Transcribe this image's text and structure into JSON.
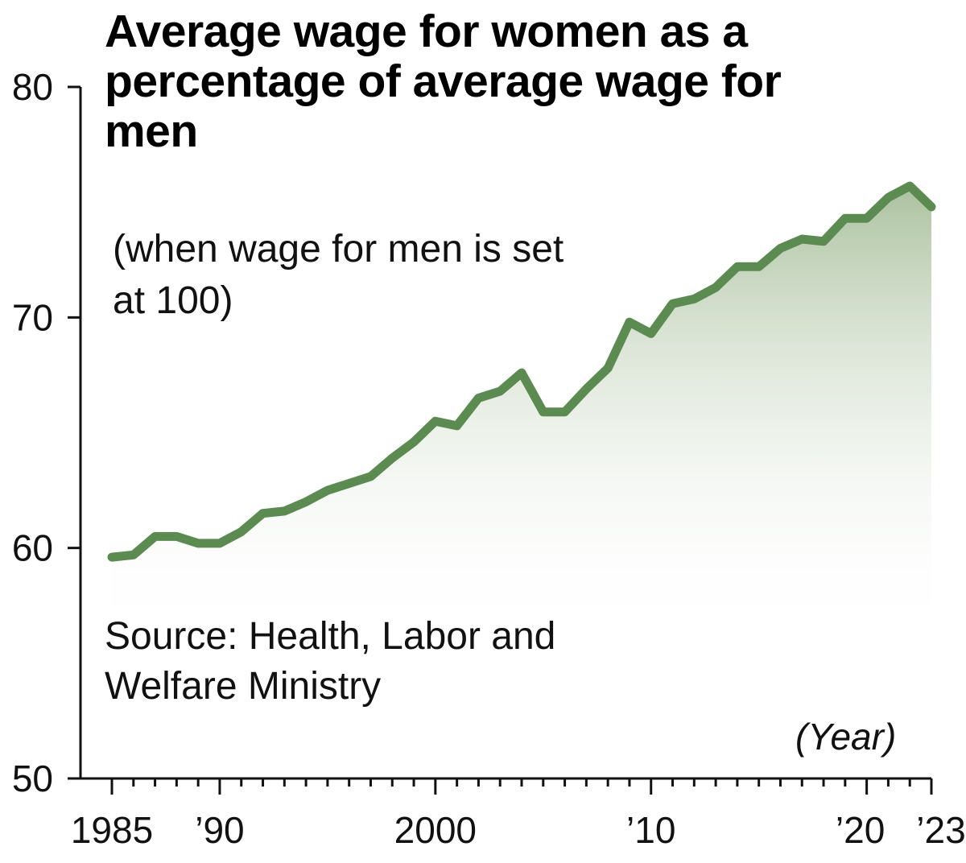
{
  "chart_data": {
    "type": "area",
    "title": "Average wage for women as a percentage of average wage for men",
    "subtitle": "(when wage for men is set at 100)",
    "source": "Source: Health, Labor and Welfare Ministry",
    "xlabel": "(Year)",
    "ylabel": "",
    "xlim": [
      1985,
      2023
    ],
    "ylim": [
      50,
      80
    ],
    "yticks": [
      50,
      60,
      70,
      80
    ],
    "ytick_labels": [
      "50",
      "60",
      "70",
      "80"
    ],
    "xticks": [
      1985,
      1990,
      2000,
      2010,
      2020,
      2023
    ],
    "xtick_labels": [
      "1985",
      "’90",
      "2000",
      "’10",
      "’20",
      "’23"
    ],
    "grid": false,
    "line_color": "#5b8b50",
    "fill_color": "#9db78f",
    "x": [
      1985,
      1986,
      1987,
      1988,
      1989,
      1990,
      1991,
      1992,
      1993,
      1994,
      1995,
      1996,
      1997,
      1998,
      1999,
      2000,
      2001,
      2002,
      2003,
      2004,
      2005,
      2006,
      2007,
      2008,
      2009,
      2010,
      2011,
      2012,
      2013,
      2014,
      2015,
      2016,
      2017,
      2018,
      2019,
      2020,
      2021,
      2022,
      2023
    ],
    "values": [
      59.6,
      59.7,
      60.5,
      60.5,
      60.2,
      60.2,
      60.7,
      61.5,
      61.6,
      62.0,
      62.5,
      62.8,
      63.1,
      63.9,
      64.6,
      65.5,
      65.3,
      66.5,
      66.8,
      67.6,
      65.9,
      65.9,
      66.9,
      67.8,
      69.8,
      69.3,
      70.6,
      70.8,
      71.3,
      72.2,
      72.2,
      73.0,
      73.4,
      73.3,
      74.3,
      74.3,
      75.2,
      75.7,
      74.8
    ]
  }
}
